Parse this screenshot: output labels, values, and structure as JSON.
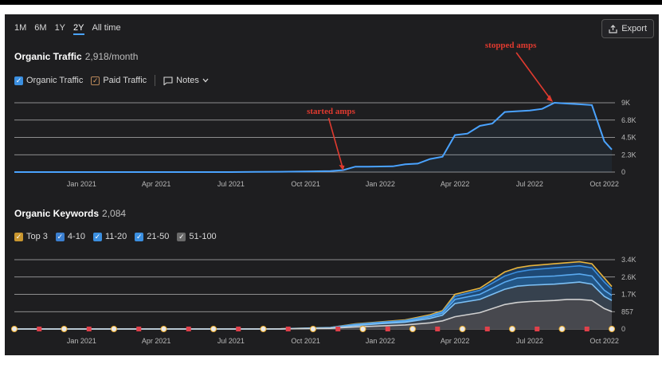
{
  "ranges": [
    "1M",
    "6M",
    "1Y",
    "2Y",
    "All time"
  ],
  "active_range": "2Y",
  "export_label": "Export",
  "traffic": {
    "title": "Organic Traffic",
    "value": "2,918/month",
    "legend": {
      "organic": "Organic Traffic",
      "paid": "Paid Traffic",
      "notes": "Notes"
    }
  },
  "keywords": {
    "title": "Organic Keywords",
    "value": "2,084",
    "legend": [
      "Top 3",
      "4-10",
      "11-20",
      "21-50",
      "51-100"
    ]
  },
  "colors": {
    "organic": "#4aa3ff",
    "top3": "#e8b43c",
    "k410": "#3b8fe0",
    "k1120": "#5aaaf0",
    "k2150": "#7cc0f5",
    "k51100": "#d0d0d0",
    "annotation": "#e03a2f",
    "note_marker": "#e0404a"
  },
  "chart_data": [
    {
      "type": "line",
      "title": "Organic Traffic",
      "x_ticks": [
        "Jan 2021",
        "Apr 2021",
        "Jul 2021",
        "Oct 2021",
        "Jan 2022",
        "Apr 2022",
        "Jul 2022",
        "Oct 2022"
      ],
      "y_ticks": [
        "9K",
        "6.8K",
        "4.5K",
        "2.3K",
        "0"
      ],
      "ylim": [
        0,
        9000
      ],
      "series": [
        {
          "name": "Organic Traffic",
          "x": [
            -2.7,
            0,
            1,
            2,
            3,
            4,
            5,
            6,
            7,
            8,
            9,
            9.5,
            10,
            10.5,
            11,
            11.5,
            12,
            12.5,
            13,
            13.5,
            14,
            14.5,
            15,
            15.5,
            16,
            16.5,
            17,
            17.5,
            18,
            18.5,
            19,
            19.5,
            20,
            20.5,
            21,
            21.3
          ],
          "values": [
            0,
            0,
            0,
            0,
            0,
            0,
            0,
            0,
            20,
            40,
            80,
            100,
            120,
            250,
            700,
            700,
            720,
            750,
            1000,
            1100,
            1700,
            2000,
            4800,
            5000,
            6000,
            6300,
            7800,
            7900,
            8000,
            8200,
            9000,
            8900,
            8800,
            8700,
            4000,
            2918
          ]
        }
      ],
      "annotations": [
        {
          "text": "started amps",
          "at": [
            10.5,
            0
          ]
        },
        {
          "text": "stopped amps",
          "at": [
            19,
            9000
          ]
        }
      ]
    },
    {
      "type": "area",
      "title": "Organic Keywords",
      "x_ticks": [
        "Jan 2021",
        "Apr 2021",
        "Jul 2021",
        "Oct 2021",
        "Jan 2022",
        "Apr 2022",
        "Jul 2022",
        "Oct 2022"
      ],
      "y_ticks": [
        "3.4K",
        "2.6K",
        "1.7K",
        "857",
        "0"
      ],
      "ylim": [
        0,
        3400
      ],
      "x": [
        -2.7,
        0,
        2,
        4,
        6,
        8,
        10,
        11,
        12,
        13,
        14,
        14.5,
        15,
        16,
        17,
        17.5,
        18,
        19,
        19.5,
        20,
        20.5,
        21,
        21.3
      ],
      "series": [
        {
          "name": "Top 3",
          "values": [
            0,
            0,
            0,
            0,
            0,
            10,
            80,
            250,
            350,
            450,
            700,
            900,
            1700,
            2000,
            2800,
            3000,
            3100,
            3200,
            3250,
            3300,
            3200,
            2500,
            2084
          ]
        },
        {
          "name": "4-10",
          "values": [
            0,
            0,
            0,
            0,
            0,
            8,
            70,
            230,
            330,
            420,
            650,
            850,
            1600,
            1900,
            2600,
            2800,
            2900,
            3000,
            3050,
            3100,
            3000,
            2300,
            1950
          ]
        },
        {
          "name": "11-20",
          "values": [
            0,
            0,
            0,
            0,
            0,
            6,
            60,
            200,
            300,
            380,
            600,
            780,
            1450,
            1700,
            2300,
            2500,
            2550,
            2600,
            2650,
            2700,
            2600,
            1900,
            1650
          ]
        },
        {
          "name": "21-50",
          "values": [
            0,
            0,
            0,
            0,
            0,
            5,
            50,
            170,
            260,
            330,
            520,
            680,
            1250,
            1450,
            1950,
            2100,
            2150,
            2200,
            2250,
            2300,
            2200,
            1600,
            1400
          ]
        },
        {
          "name": "51-100",
          "values": [
            0,
            0,
            0,
            0,
            0,
            3,
            30,
            100,
            150,
            200,
            300,
            400,
            600,
            800,
            1200,
            1300,
            1350,
            1400,
            1450,
            1450,
            1400,
            1000,
            857
          ]
        }
      ]
    }
  ]
}
